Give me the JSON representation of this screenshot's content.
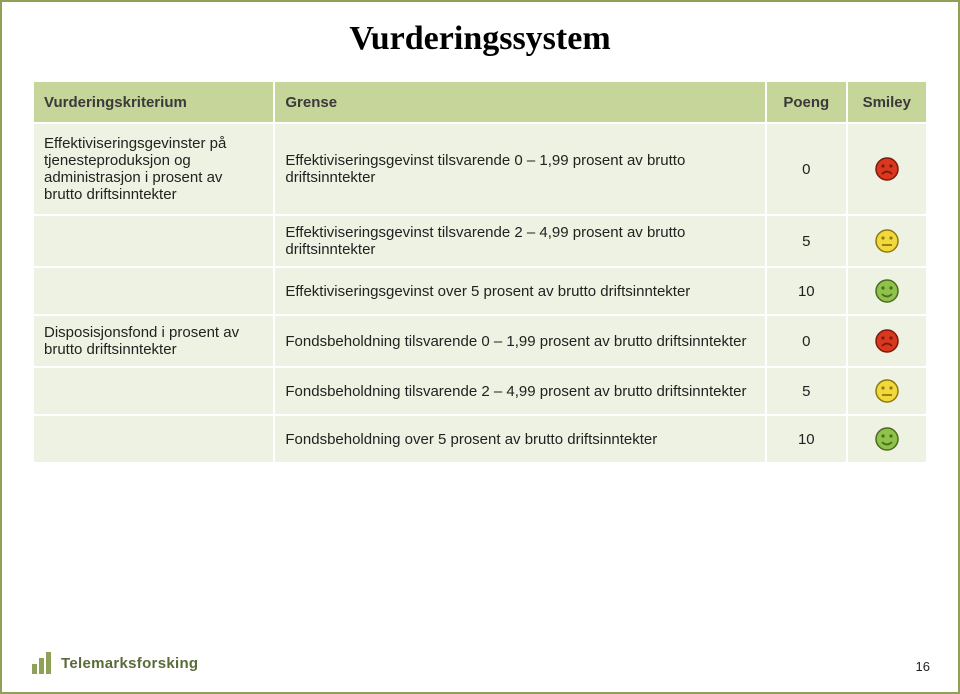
{
  "title": "Vurderingssystem",
  "columns": {
    "crit": "Vurderingskriterium",
    "grense": "Grense",
    "poeng": "Poeng",
    "smiley": "Smiley"
  },
  "rows": [
    {
      "crit": "Effektiviseringsgevinster på tjenesteproduksjon og administrasjon i prosent av brutto driftsinntekter",
      "grense": "Effektiviseringsgevinst tilsvarende 0 – 1,99 prosent av brutto driftsinntekter",
      "poeng": "0",
      "mood": "sad"
    },
    {
      "crit": "",
      "grense": "Effektiviseringsgevinst tilsvarende 2 – 4,99 prosent av brutto driftsinntekter",
      "poeng": "5",
      "mood": "neutral"
    },
    {
      "crit": "",
      "grense": "Effektiviseringsgevinst over 5 prosent av brutto driftsinntekter",
      "poeng": "10",
      "mood": "happy"
    },
    {
      "crit": "Disposisjonsfond i prosent av brutto driftsinntekter",
      "grense": "Fondsbeholdning tilsvarende 0 – 1,99 prosent av brutto driftsinntekter",
      "poeng": "0",
      "mood": "sad"
    },
    {
      "crit": "",
      "grense": "Fondsbeholdning tilsvarende 2 – 4,99 prosent av brutto driftsinntekter",
      "poeng": "5",
      "mood": "neutral"
    },
    {
      "crit": "",
      "grense": "Fondsbeholdning over 5 prosent av brutto driftsinntekter",
      "poeng": "10",
      "mood": "happy"
    }
  ],
  "smiley_colors": {
    "sad": {
      "fill": "#d9381e",
      "stroke": "#7a1a0c"
    },
    "neutral": {
      "fill": "#f2d83a",
      "stroke": "#8a7a10"
    },
    "happy": {
      "fill": "#8fc24a",
      "stroke": "#4a6b20"
    }
  },
  "footer_brand": "Telemarksforsking",
  "page_number": "16"
}
